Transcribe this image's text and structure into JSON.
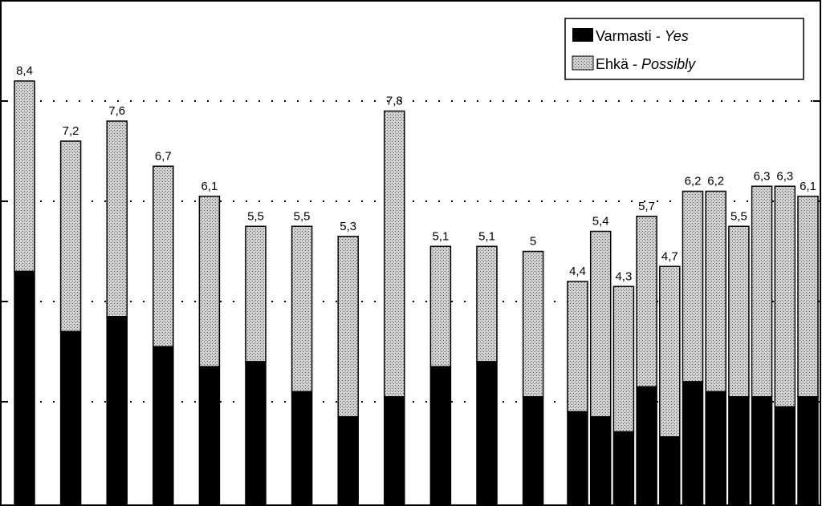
{
  "chart_data": {
    "type": "bar",
    "stacked": true,
    "title": "",
    "xlabel": "",
    "ylabel": "",
    "ylim": [
      0,
      10
    ],
    "grid": "dotted-horizontal",
    "legend_position": "top-right",
    "series": [
      {
        "name": "Varmasti - Yes",
        "name_native": "Varmasti",
        "name_english": "Yes",
        "color": "#000000",
        "values": [
          4.6,
          3.4,
          3.7,
          3.1,
          2.7,
          2.8,
          2.2,
          1.7,
          2.1,
          2.7,
          2.8,
          2.1,
          1.8,
          1.7,
          1.4,
          2.3,
          1.3,
          2.4,
          2.2,
          2.1,
          2.1,
          1.9,
          2.1
        ]
      },
      {
        "name": "Ehkä - Possibly",
        "name_native": "Ehkä",
        "name_english": "Possibly",
        "color": "#c8c8c8",
        "values": [
          3.8,
          3.8,
          3.9,
          3.6,
          3.4,
          2.7,
          3.3,
          3.6,
          5.7,
          2.4,
          2.3,
          2.9,
          2.6,
          3.7,
          2.9,
          3.4,
          3.4,
          3.8,
          4.0,
          3.4,
          4.2,
          4.4,
          4.0
        ]
      }
    ],
    "totals": [
      "8,4",
      "7,2",
      "7,6",
      "6,7",
      "6,1",
      "5,5",
      "5,5",
      "5,3",
      "7,8",
      "5,1",
      "5,1",
      "5",
      "4,4",
      "5,4",
      "4,3",
      "5,7",
      "4,7",
      "6,2",
      "6,2",
      "5,5",
      "6,3",
      "6,3",
      "6,1"
    ]
  },
  "colors": {
    "yes": "#000000",
    "possibly": "#c8c8c8",
    "axis": "#000000",
    "grid": "#000000"
  }
}
